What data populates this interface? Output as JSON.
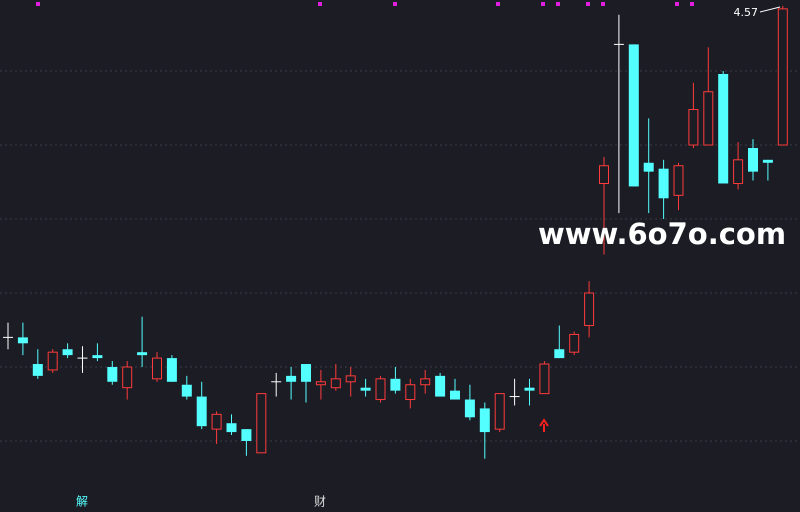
{
  "chart_data": {
    "type": "candlestick",
    "open": [
      3.45,
      3.45,
      3.36,
      3.34,
      3.41,
      3.38,
      3.39,
      3.35,
      3.28,
      3.4,
      3.31,
      3.38,
      3.29,
      3.25,
      3.14,
      3.16,
      3.14,
      3.06,
      3.3,
      3.32,
      3.36,
      3.29,
      3.28,
      3.3,
      3.28,
      3.24,
      3.31,
      3.24,
      3.29,
      3.32,
      3.27,
      3.24,
      3.21,
      3.14,
      3.25,
      3.28,
      3.26,
      3.41,
      3.4,
      3.49,
      3.97,
      4.44,
      4.44,
      4.04,
      4.02,
      3.93,
      4.1,
      4.1,
      4.34,
      3.97,
      4.09,
      4.05,
      4.1
    ],
    "high": [
      3.5,
      3.5,
      3.41,
      3.41,
      3.43,
      3.42,
      3.43,
      3.37,
      3.37,
      3.52,
      3.4,
      3.39,
      3.32,
      3.3,
      3.2,
      3.19,
      3.14,
      3.26,
      3.33,
      3.35,
      3.36,
      3.34,
      3.36,
      3.35,
      3.31,
      3.32,
      3.35,
      3.31,
      3.34,
      3.33,
      3.31,
      3.29,
      3.23,
      3.26,
      3.31,
      3.31,
      3.37,
      3.49,
      3.47,
      3.64,
      4.06,
      4.54,
      4.44,
      4.19,
      4.05,
      4.04,
      4.31,
      4.43,
      4.35,
      4.11,
      4.12,
      4.05,
      4.57
    ],
    "low": [
      3.41,
      3.39,
      3.31,
      3.33,
      3.38,
      3.33,
      3.37,
      3.29,
      3.24,
      3.35,
      3.3,
      3.3,
      3.24,
      3.14,
      3.09,
      3.12,
      3.05,
      3.06,
      3.25,
      3.24,
      3.23,
      3.24,
      3.27,
      3.25,
      3.25,
      3.23,
      3.26,
      3.21,
      3.26,
      3.25,
      3.24,
      3.17,
      3.04,
      3.13,
      3.22,
      3.22,
      3.26,
      3.38,
      3.39,
      3.45,
      3.73,
      3.87,
      3.96,
      3.87,
      3.85,
      3.88,
      4.09,
      4.1,
      3.97,
      3.95,
      3.98,
      3.98,
      4.1
    ],
    "close": [
      3.45,
      3.43,
      3.32,
      3.4,
      3.39,
      3.38,
      3.38,
      3.3,
      3.35,
      3.39,
      3.38,
      3.3,
      3.25,
      3.15,
      3.19,
      3.13,
      3.1,
      3.26,
      3.3,
      3.3,
      3.3,
      3.3,
      3.31,
      3.32,
      3.27,
      3.31,
      3.27,
      3.29,
      3.31,
      3.25,
      3.24,
      3.18,
      3.13,
      3.26,
      3.25,
      3.27,
      3.36,
      3.38,
      3.46,
      3.6,
      4.03,
      4.44,
      3.96,
      4.01,
      3.92,
      4.03,
      4.22,
      4.28,
      3.97,
      4.05,
      4.01,
      4.04,
      4.56
    ],
    "up_color": "#ff3b3b",
    "down_color": "#54ffff",
    "flat_color": "#ffffff",
    "ylim": [
      2.86,
      4.59
    ],
    "yticks": [
      3.1,
      3.35,
      3.6,
      3.85,
      4.1,
      4.35
    ],
    "grid": true,
    "annotations": [
      "解",
      "财"
    ],
    "watermark": "www.6o7o.com"
  }
}
